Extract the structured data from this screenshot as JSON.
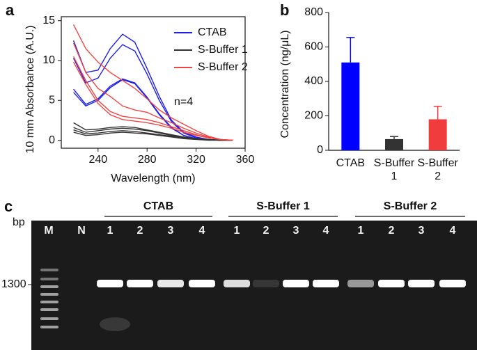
{
  "figure": {
    "panel_labels": [
      "a",
      "b",
      "c"
    ]
  },
  "chart_data": [
    {
      "type": "line",
      "xlabel": "Wavelength (nm)",
      "ylabel": "10 mm Absorbance (A.U.)",
      "annotation": "n=4",
      "x": [
        220,
        230,
        240,
        250,
        260,
        270,
        280,
        290,
        300,
        310,
        320,
        330,
        340,
        350
      ],
      "xlim": [
        210,
        360
      ],
      "xticks": [
        240,
        280,
        320,
        360
      ],
      "ylim": [
        -1,
        15.5
      ],
      "yticks": [
        0,
        5,
        10,
        15
      ],
      "series": [
        {
          "name": "CTAB",
          "color": "#1f1fe6",
          "curves": [
            [
              12.5,
              8.5,
              8.8,
              11.5,
              13.3,
              12.3,
              9,
              5.5,
              2.5,
              1.0,
              0.4,
              0.1,
              0,
              0
            ],
            [
              10.3,
              7.2,
              7.8,
              10.3,
              12.0,
              11.2,
              8.3,
              5,
              2.3,
              0.9,
              0.3,
              0.1,
              0,
              0
            ],
            [
              6.4,
              4.5,
              5.2,
              6.8,
              7.7,
              7.2,
              5.4,
              3.3,
              1.6,
              0.6,
              0.2,
              0.1,
              0,
              0
            ],
            [
              6.0,
              4.3,
              5.0,
              6.6,
              7.6,
              7.1,
              5.3,
              3.2,
              1.5,
              0.6,
              0.2,
              0.1,
              0,
              0
            ]
          ]
        },
        {
          "name": "S-Buffer 1",
          "color": "#333333",
          "curves": [
            [
              2.2,
              1.3,
              1.4,
              1.6,
              1.7,
              1.6,
              1.3,
              1.0,
              0.7,
              0.4,
              0.2,
              0.1,
              0,
              0
            ],
            [
              1.6,
              1.0,
              1.2,
              1.4,
              1.5,
              1.4,
              1.2,
              0.9,
              0.6,
              0.4,
              0.2,
              0.1,
              0,
              0
            ],
            [
              1.3,
              0.8,
              0.9,
              1.1,
              1.2,
              1.1,
              0.9,
              0.7,
              0.5,
              0.3,
              0.15,
              0.05,
              0,
              0
            ],
            [
              1.0,
              0.6,
              0.7,
              0.9,
              1.0,
              0.9,
              0.8,
              0.6,
              0.4,
              0.2,
              0.1,
              0,
              0,
              0
            ]
          ]
        },
        {
          "name": "S-Buffer 2",
          "color": "#f04545",
          "curves": [
            [
              14.5,
              11.5,
              9.8,
              8.5,
              7.5,
              6.5,
              5.2,
              3.8,
              2.8,
              2,
              1.2,
              0.5,
              0.1,
              0
            ],
            [
              12.2,
              8.5,
              6.5,
              5.5,
              4.3,
              3.8,
              3.5,
              2.8,
              2.2,
              1.5,
              0.9,
              0.4,
              0.1,
              0
            ],
            [
              10.5,
              7.5,
              5.0,
              3.6,
              3.0,
              2.8,
              2.6,
              2.2,
              1.7,
              1.2,
              0.7,
              0.3,
              0.1,
              0
            ],
            [
              9.8,
              7.0,
              4.6,
              3.2,
              2.6,
              2.4,
              2.2,
              1.9,
              1.5,
              1.0,
              0.6,
              0.3,
              0.1,
              0
            ]
          ]
        }
      ]
    },
    {
      "type": "bar",
      "ylabel": "Concentration (ng/μL)",
      "categories": [
        "CTAB",
        "S-Buffer 1",
        "S-Buffer 2"
      ],
      "values": [
        510,
        65,
        180
      ],
      "errors": [
        145,
        15,
        75
      ],
      "colors": [
        "#0000ff",
        "#333333",
        "#f03c3c"
      ],
      "ylim": [
        0,
        800
      ],
      "yticks": [
        0,
        200,
        400,
        600,
        800
      ]
    }
  ],
  "gel": {
    "unit": "bp",
    "marker": "1300",
    "groups": [
      "CTAB",
      "S-Buffer 1",
      "S-Buffer 2"
    ],
    "lanes": [
      "M",
      "N",
      "1",
      "2",
      "3",
      "4",
      "1",
      "2",
      "3",
      "4",
      "1",
      "2",
      "3",
      "4"
    ]
  }
}
